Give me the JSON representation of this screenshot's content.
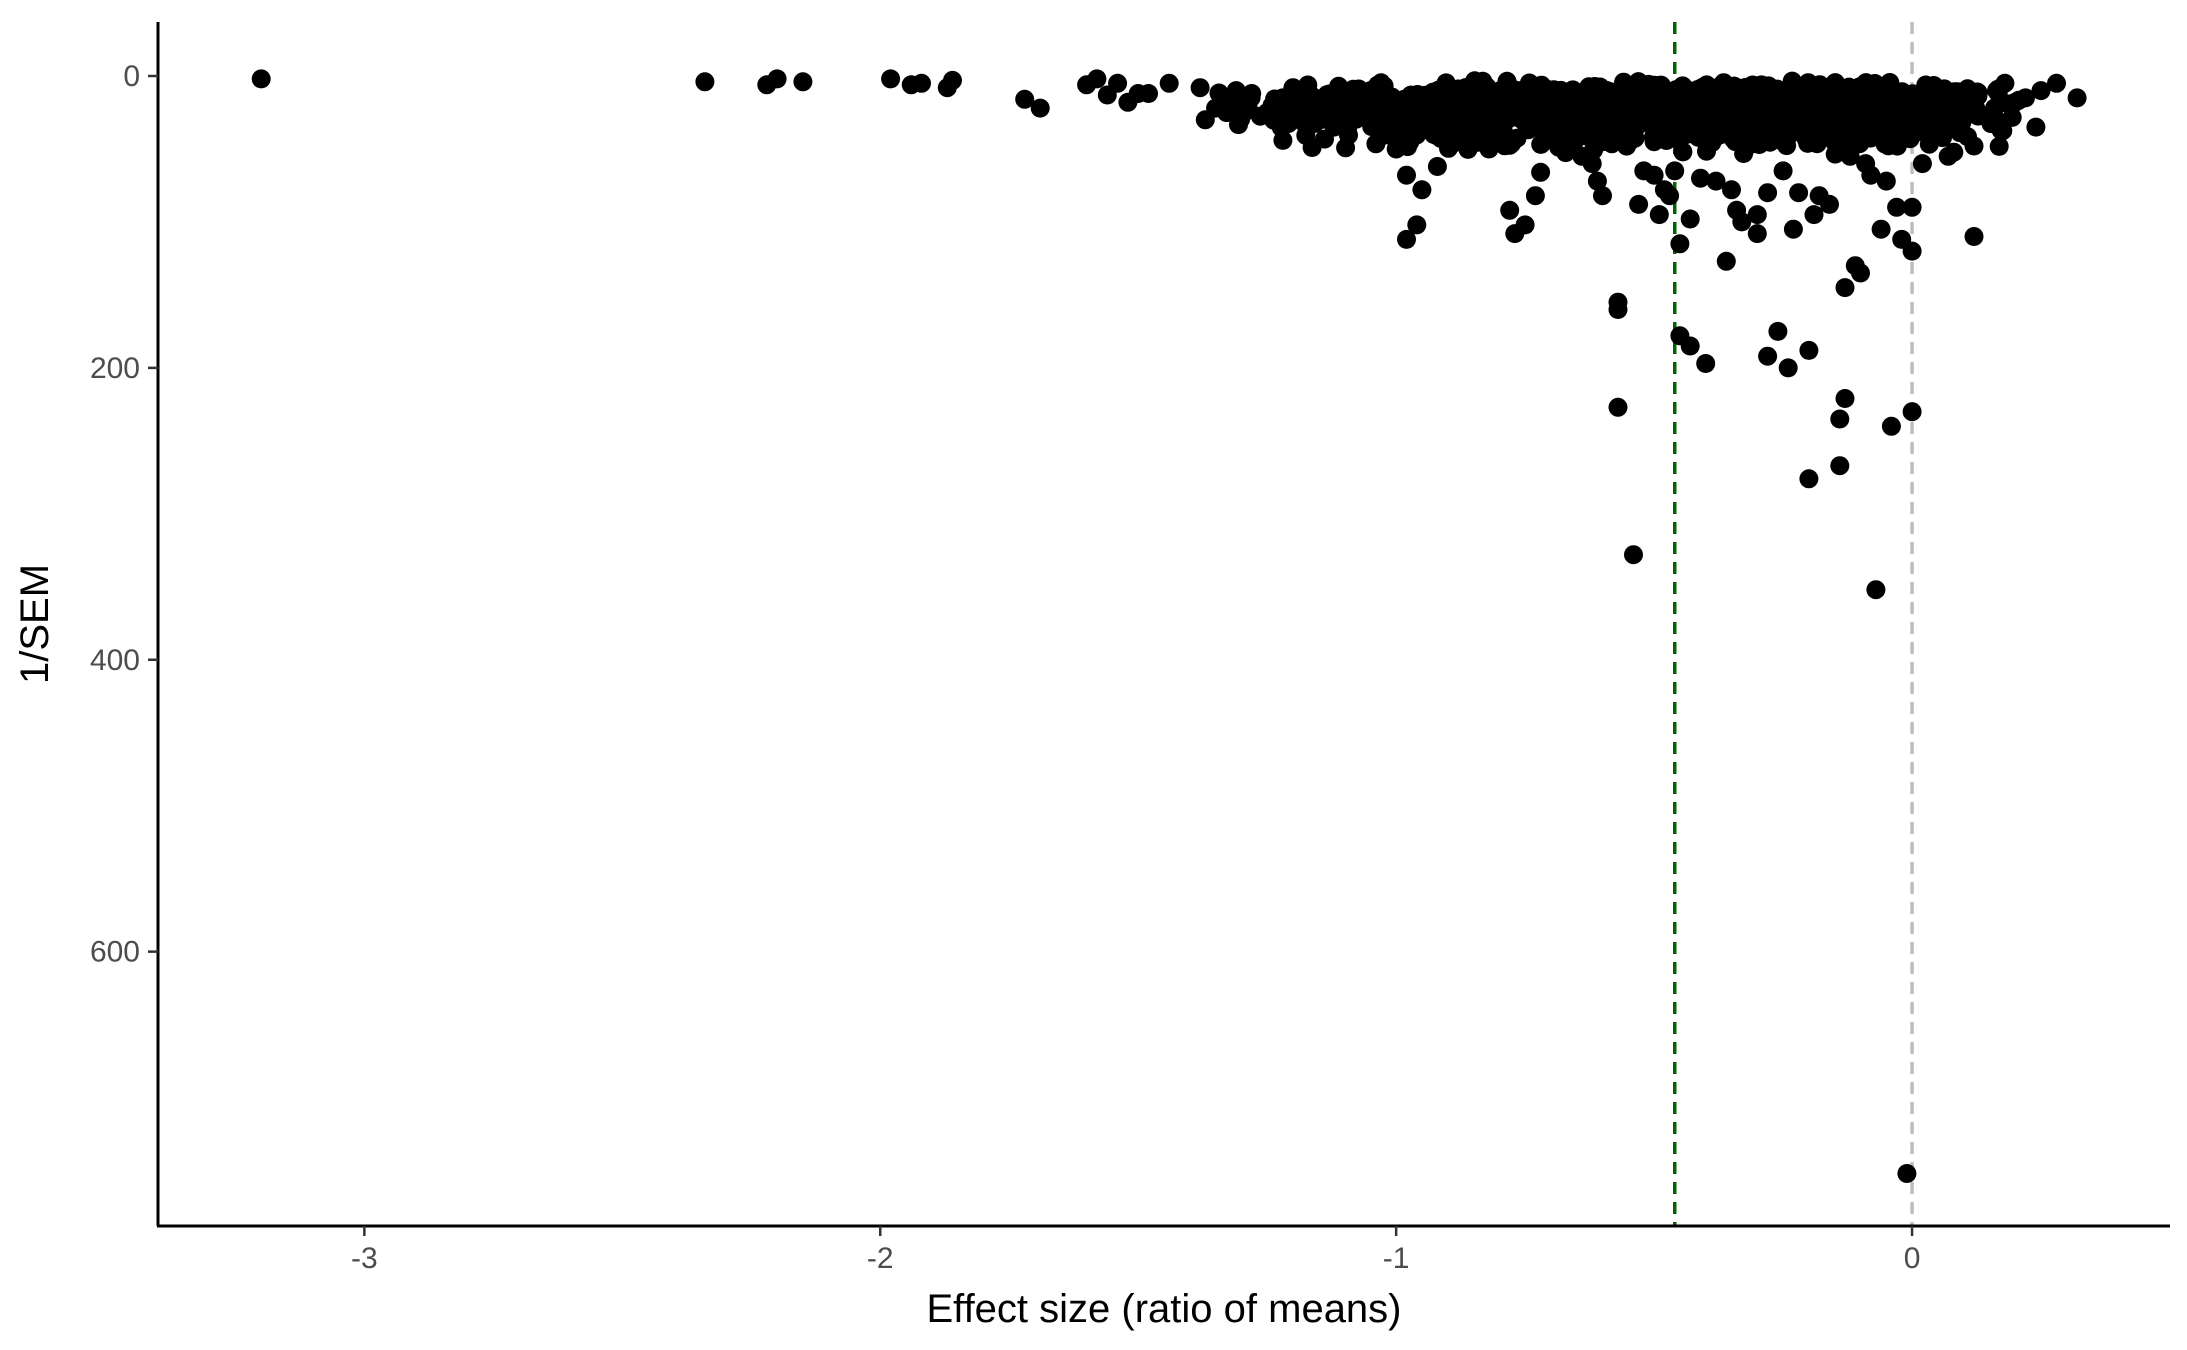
{
  "chart_data": {
    "type": "scatter",
    "title": "",
    "xlabel": "Effect size (ratio of means)",
    "ylabel": "1/SEM",
    "xlim": [
      -3.4,
      0.5
    ],
    "ylim": [
      -37,
      788
    ],
    "y_reversed": true,
    "grid": false,
    "legend": "none",
    "x_ticks": [
      {
        "value": -3,
        "label": "-3"
      },
      {
        "value": -2,
        "label": "-2"
      },
      {
        "value": -1,
        "label": "-1"
      },
      {
        "value": 0,
        "label": "0"
      }
    ],
    "y_ticks": [
      {
        "value": 0,
        "label": "0"
      },
      {
        "value": 200,
        "label": "200"
      },
      {
        "value": 400,
        "label": "400"
      },
      {
        "value": 600,
        "label": "600"
      }
    ],
    "reference_lines": [
      {
        "x": -0.46,
        "color": "#006400",
        "style": "dashed"
      },
      {
        "x": 0,
        "color": "#bebebe",
        "style": "dashed"
      }
    ],
    "point_color": "#000000",
    "points": [
      [
        -3.2,
        2
      ],
      [
        -2.34,
        4
      ],
      [
        -2.22,
        6
      ],
      [
        -2.2,
        2
      ],
      [
        -2.15,
        4
      ],
      [
        -1.98,
        2
      ],
      [
        -1.94,
        6
      ],
      [
        -1.92,
        5
      ],
      [
        -1.87,
        8
      ],
      [
        -1.86,
        3
      ],
      [
        -1.72,
        16
      ],
      [
        -1.69,
        22
      ],
      [
        -1.6,
        6
      ],
      [
        -1.58,
        2
      ],
      [
        -1.56,
        13
      ],
      [
        -1.54,
        5
      ],
      [
        -1.52,
        18
      ],
      [
        -1.5,
        12
      ],
      [
        -1.48,
        12
      ],
      [
        -1.44,
        5
      ],
      [
        -1.38,
        8
      ],
      [
        -1.37,
        30
      ],
      [
        -1.35,
        22
      ],
      [
        -1.33,
        20
      ],
      [
        -1.31,
        10
      ],
      [
        -1.28,
        12
      ],
      [
        -1.25,
        25
      ],
      [
        -1.22,
        15
      ],
      [
        -1.2,
        8
      ],
      [
        -1.18,
        25
      ],
      [
        -1.15,
        20
      ],
      [
        -1.12,
        35
      ],
      [
        -1.1,
        15
      ],
      [
        -1.05,
        18
      ],
      [
        -1.0,
        50
      ],
      [
        -0.98,
        68
      ],
      [
        -0.96,
        102
      ],
      [
        -0.95,
        78
      ],
      [
        -0.92,
        62
      ],
      [
        -0.98,
        112
      ],
      [
        -0.9,
        30
      ],
      [
        -0.85,
        42
      ],
      [
        -0.82,
        50
      ],
      [
        -0.8,
        45
      ],
      [
        -0.78,
        92
      ],
      [
        -0.77,
        108
      ],
      [
        -0.75,
        102
      ],
      [
        -0.73,
        82
      ],
      [
        -0.72,
        66
      ],
      [
        -0.7,
        35
      ],
      [
        -0.68,
        20
      ],
      [
        -0.66,
        45
      ],
      [
        -0.64,
        55
      ],
      [
        -0.62,
        60
      ],
      [
        -0.61,
        72
      ],
      [
        -0.6,
        82
      ],
      [
        -0.57,
        155
      ],
      [
        -0.57,
        160
      ],
      [
        -0.57,
        227
      ],
      [
        -0.54,
        328
      ],
      [
        -0.53,
        88
      ],
      [
        -0.52,
        65
      ],
      [
        -0.5,
        68
      ],
      [
        -0.49,
        95
      ],
      [
        -0.48,
        78
      ],
      [
        -0.47,
        82
      ],
      [
        -0.46,
        65
      ],
      [
        -0.45,
        178
      ],
      [
        -0.45,
        115
      ],
      [
        -0.43,
        98
      ],
      [
        -0.43,
        185
      ],
      [
        -0.41,
        70
      ],
      [
        -0.4,
        197
      ],
      [
        -0.38,
        72
      ],
      [
        -0.36,
        127
      ],
      [
        -0.35,
        78
      ],
      [
        -0.34,
        92
      ],
      [
        -0.33,
        100
      ],
      [
        -0.3,
        108
      ],
      [
        -0.3,
        95
      ],
      [
        -0.28,
        80
      ],
      [
        -0.28,
        192
      ],
      [
        -0.26,
        175
      ],
      [
        -0.25,
        65
      ],
      [
        -0.24,
        200
      ],
      [
        -0.23,
        105
      ],
      [
        -0.22,
        80
      ],
      [
        -0.2,
        188
      ],
      [
        -0.2,
        276
      ],
      [
        -0.19,
        95
      ],
      [
        -0.18,
        82
      ],
      [
        -0.16,
        88
      ],
      [
        -0.14,
        235
      ],
      [
        -0.14,
        267
      ],
      [
        -0.13,
        221
      ],
      [
        -0.13,
        145
      ],
      [
        -0.12,
        55
      ],
      [
        -0.11,
        130
      ],
      [
        -0.1,
        135
      ],
      [
        -0.09,
        60
      ],
      [
        -0.08,
        68
      ],
      [
        -0.07,
        352
      ],
      [
        -0.06,
        105
      ],
      [
        -0.05,
        72
      ],
      [
        -0.04,
        240
      ],
      [
        -0.03,
        90
      ],
      [
        -0.02,
        112
      ],
      [
        -0.01,
        752
      ],
      [
        0.0,
        230
      ],
      [
        0.0,
        120
      ],
      [
        0.0,
        90
      ],
      [
        0.02,
        60
      ],
      [
        0.05,
        30
      ],
      [
        0.08,
        20
      ],
      [
        0.1,
        12
      ],
      [
        0.12,
        48
      ],
      [
        0.12,
        110
      ],
      [
        0.15,
        28
      ],
      [
        0.18,
        5
      ],
      [
        0.2,
        18
      ],
      [
        0.22,
        15
      ],
      [
        0.25,
        10
      ],
      [
        0.28,
        5
      ],
      [
        0.32,
        15
      ],
      [
        0.07,
        55
      ],
      [
        0.24,
        35
      ],
      [
        -0.35,
        40
      ],
      [
        -0.55,
        35
      ],
      [
        -0.65,
        30
      ],
      [
        -0.75,
        25
      ],
      [
        -0.85,
        20
      ],
      [
        -0.95,
        15
      ],
      [
        -1.05,
        10
      ],
      [
        -0.25,
        45
      ],
      [
        -0.15,
        40
      ],
      [
        -0.05,
        35
      ],
      [
        -0.4,
        25
      ],
      [
        -0.6,
        15
      ],
      [
        -0.7,
        10
      ],
      [
        -0.3,
        20
      ],
      [
        -0.2,
        28
      ],
      [
        -0.1,
        22
      ],
      [
        0.05,
        18
      ],
      [
        -0.45,
        12
      ],
      [
        -0.5,
        45
      ]
    ],
    "cloud": {
      "x_min": -1.4,
      "x_max": 0.25,
      "x_mode": -0.28,
      "y_min": 2,
      "y_max": 55,
      "y_mode": 15,
      "count": 1100,
      "seed": 42
    }
  }
}
